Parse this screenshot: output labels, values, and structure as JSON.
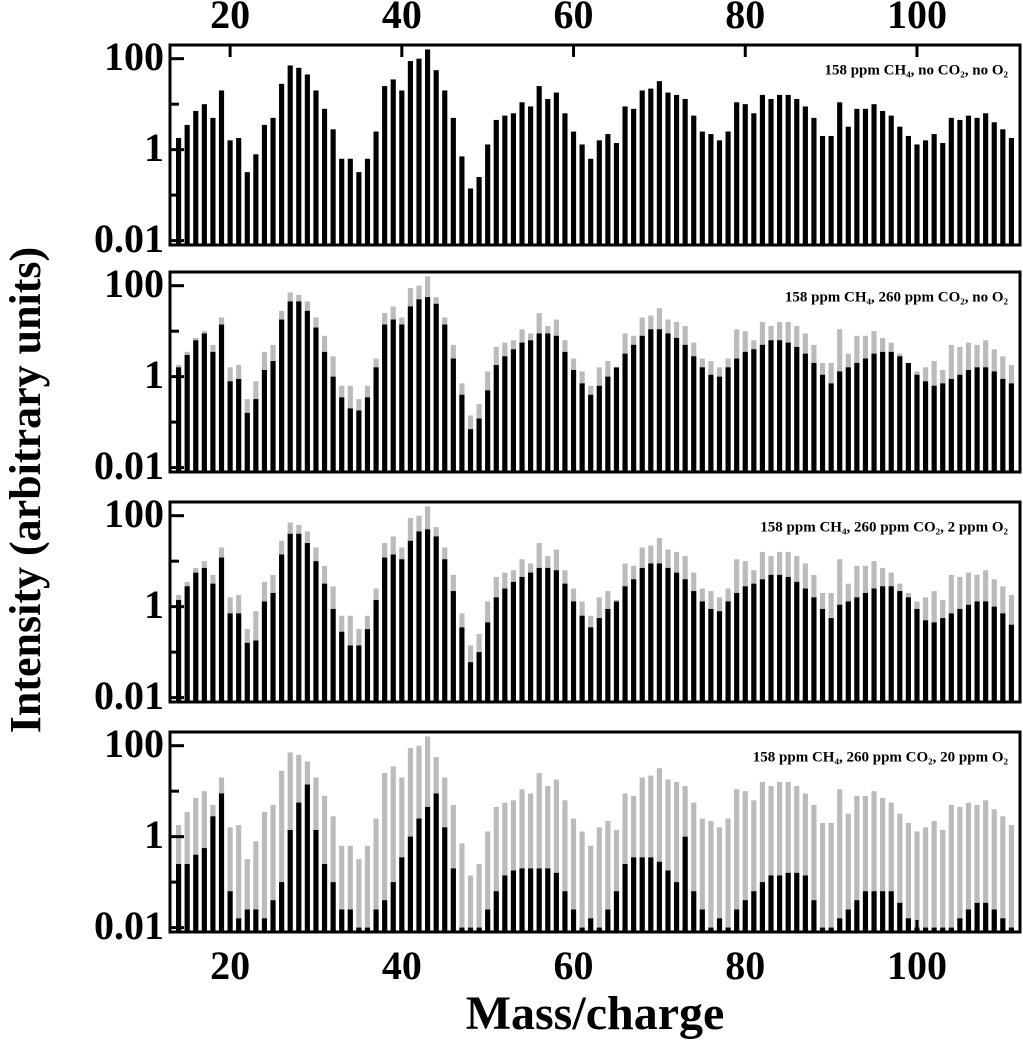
{
  "ylabel": "Intensity (arbitrary units)",
  "chart_data": [
    {
      "type": "bar",
      "annotation": "158 ppm CH₄, no CO₂, no O₂",
      "x": [
        14,
        15,
        16,
        17,
        18,
        19,
        20,
        21,
        22,
        23,
        24,
        25,
        26,
        27,
        28,
        29,
        30,
        31,
        32,
        33,
        34,
        35,
        36,
        37,
        38,
        39,
        40,
        41,
        42,
        43,
        44,
        45,
        46,
        47,
        48,
        49,
        50,
        51,
        52,
        53,
        54,
        55,
        56,
        57,
        58,
        59,
        60,
        61,
        62,
        63,
        64,
        65,
        66,
        67,
        68,
        69,
        70,
        71,
        72,
        73,
        74,
        75,
        76,
        77,
        78,
        79,
        80,
        81,
        82,
        83,
        84,
        85,
        86,
        87,
        88,
        89,
        90,
        91,
        92,
        93,
        94,
        95,
        96,
        97,
        98,
        99,
        100,
        101,
        102,
        103,
        104,
        105,
        106,
        107,
        108,
        109,
        110,
        111
      ],
      "series": [
        {
          "color": "#000000",
          "values": [
            1.8,
            3.5,
            7.1,
            10,
            5,
            20,
            1.6,
            1.8,
            0.32,
            0.79,
            3.5,
            5,
            28,
            71,
            63,
            45,
            20,
            7.9,
            2.8,
            0.63,
            0.63,
            0.32,
            0.63,
            2.5,
            25,
            35,
            20,
            89,
            100,
            160,
            56,
            20,
            5,
            0.71,
            0.14,
            0.25,
            1.3,
            4.5,
            5.6,
            6.3,
            11,
            8.9,
            25,
            13,
            18,
            6.3,
            2.5,
            1.3,
            0.63,
            1.6,
            2.2,
            1.4,
            8.9,
            7.9,
            20,
            22,
            32,
            18,
            16,
            13,
            5.6,
            2.5,
            2.2,
            1.6,
            2.5,
            11,
            10,
            6.3,
            16,
            13,
            16,
            16,
            13,
            8.9,
            5,
            2,
            2,
            11,
            3.2,
            7.9,
            7.9,
            10,
            7.1,
            5.6,
            3.2,
            2,
            1.3,
            1.6,
            2.2,
            1.4,
            5,
            4.5,
            5.6,
            5,
            6.3,
            4,
            2.8,
            1.8
          ]
        }
      ],
      "xlim": [
        13,
        112
      ],
      "xticks": [
        20,
        40,
        60,
        80,
        100
      ],
      "xtick_side": "top",
      "ylim": [
        0.008,
        200
      ],
      "yticks": [
        0.01,
        1,
        100
      ],
      "yminor": [
        0.1,
        10
      ],
      "yscale": "log"
    },
    {
      "type": "bar",
      "annotation": "158 ppm CH₄, 260 ppm CO₂, no O₂",
      "x": [
        14,
        15,
        16,
        17,
        18,
        19,
        20,
        21,
        22,
        23,
        24,
        25,
        26,
        27,
        28,
        29,
        30,
        31,
        32,
        33,
        34,
        35,
        36,
        37,
        38,
        39,
        40,
        41,
        42,
        43,
        44,
        45,
        46,
        47,
        48,
        49,
        50,
        51,
        52,
        53,
        54,
        55,
        56,
        57,
        58,
        59,
        60,
        61,
        62,
        63,
        64,
        65,
        66,
        67,
        68,
        69,
        70,
        71,
        72,
        73,
        74,
        75,
        76,
        77,
        78,
        79,
        80,
        81,
        82,
        83,
        84,
        85,
        86,
        87,
        88,
        89,
        90,
        91,
        92,
        93,
        94,
        95,
        96,
        97,
        98,
        99,
        100,
        101,
        102,
        103,
        104,
        105,
        106,
        107,
        108,
        109,
        110,
        111
      ],
      "series": [
        {
          "color": "#bbbbbb",
          "values": [
            1.8,
            3.5,
            7.1,
            10,
            5,
            20,
            1.6,
            1.8,
            0.32,
            0.79,
            3.5,
            5,
            28,
            71,
            63,
            45,
            20,
            7.9,
            2.8,
            0.63,
            0.63,
            0.32,
            0.63,
            2.5,
            25,
            35,
            20,
            89,
            100,
            160,
            56,
            20,
            5,
            0.71,
            0.14,
            0.25,
            1.3,
            4.5,
            5.6,
            6.3,
            11,
            8.9,
            25,
            13,
            18,
            6.3,
            2.5,
            1.3,
            0.63,
            1.6,
            2.2,
            1.4,
            8.9,
            7.9,
            20,
            22,
            32,
            18,
            16,
            13,
            5.6,
            2.5,
            2.2,
            1.6,
            2.5,
            11,
            10,
            6.3,
            16,
            13,
            16,
            16,
            13,
            8.9,
            5,
            2,
            2,
            11,
            3.2,
            7.9,
            7.9,
            10,
            7.1,
            5.6,
            3.2,
            2,
            1.3,
            1.6,
            2.2,
            1.4,
            5,
            4.5,
            5.6,
            5,
            6.3,
            4,
            2.8,
            1.8
          ]
        },
        {
          "color": "#000000",
          "values": [
            1.6,
            3,
            6.3,
            8.9,
            3.5,
            14,
            0.79,
            0.89,
            0.16,
            0.32,
            1.4,
            2.2,
            18,
            45,
            45,
            28,
            12,
            3.5,
            1,
            0.35,
            0.2,
            0.18,
            0.35,
            1.6,
            14,
            18,
            14,
            35,
            50,
            56,
            40,
            14,
            2.5,
            0.4,
            0.07,
            0.12,
            0.5,
            1.8,
            2.8,
            4,
            5.6,
            6.3,
            8.9,
            8.9,
            7.9,
            3.5,
            1.4,
            0.71,
            0.4,
            0.63,
            1,
            1.6,
            3.2,
            5,
            7.9,
            11,
            11,
            8.9,
            7.1,
            5,
            2.8,
            1.6,
            1.1,
            1,
            1.6,
            2.5,
            3.5,
            4,
            5,
            6.3,
            6.3,
            5.6,
            4.5,
            3.2,
            2,
            1.1,
            0.71,
            1.3,
            1.6,
            2,
            2.5,
            3.2,
            3.5,
            3.5,
            2.8,
            2,
            1.1,
            0.79,
            0.63,
            0.71,
            0.89,
            1.1,
            1.4,
            1.6,
            1.6,
            1.3,
            0.89,
            0.71
          ]
        }
      ],
      "xlim": [
        13,
        112
      ],
      "ylim": [
        0.008,
        200
      ],
      "yticks": [
        0.01,
        1,
        100
      ],
      "yminor": [
        0.1,
        10
      ],
      "yscale": "log"
    },
    {
      "type": "bar",
      "annotation": "158 ppm CH₄, 260 ppm CO₂, 2 ppm O₂",
      "x": [
        14,
        15,
        16,
        17,
        18,
        19,
        20,
        21,
        22,
        23,
        24,
        25,
        26,
        27,
        28,
        29,
        30,
        31,
        32,
        33,
        34,
        35,
        36,
        37,
        38,
        39,
        40,
        41,
        42,
        43,
        44,
        45,
        46,
        47,
        48,
        49,
        50,
        51,
        52,
        53,
        54,
        55,
        56,
        57,
        58,
        59,
        60,
        61,
        62,
        63,
        64,
        65,
        66,
        67,
        68,
        69,
        70,
        71,
        72,
        73,
        74,
        75,
        76,
        77,
        78,
        79,
        80,
        81,
        82,
        83,
        84,
        85,
        86,
        87,
        88,
        89,
        90,
        91,
        92,
        93,
        94,
        95,
        96,
        97,
        98,
        99,
        100,
        101,
        102,
        103,
        104,
        105,
        106,
        107,
        108,
        109,
        110,
        111
      ],
      "series": [
        {
          "color": "#bbbbbb",
          "values": [
            1.8,
            3.5,
            7.1,
            10,
            5,
            20,
            1.6,
            1.8,
            0.32,
            0.79,
            3.5,
            5,
            28,
            71,
            63,
            45,
            20,
            7.9,
            2.8,
            0.63,
            0.63,
            0.32,
            0.63,
            2.5,
            25,
            35,
            20,
            89,
            100,
            160,
            56,
            20,
            5,
            0.71,
            0.14,
            0.25,
            1.3,
            4.5,
            5.6,
            6.3,
            11,
            8.9,
            25,
            13,
            18,
            6.3,
            2.5,
            1.3,
            0.63,
            1.6,
            2.2,
            1.4,
            8.9,
            7.9,
            20,
            22,
            32,
            18,
            16,
            13,
            5.6,
            2.5,
            2.2,
            1.6,
            2.5,
            11,
            10,
            6.3,
            16,
            13,
            16,
            16,
            13,
            8.9,
            5,
            2,
            2,
            11,
            3.2,
            7.9,
            7.9,
            10,
            7.1,
            5.6,
            3.2,
            2,
            1.3,
            1.6,
            2.2,
            1.4,
            5,
            4.5,
            5.6,
            5,
            6.3,
            4,
            2.8,
            1.8
          ]
        },
        {
          "color": "#000000",
          "values": [
            1.4,
            2.8,
            5.6,
            7.1,
            3.2,
            12,
            0.71,
            0.71,
            0.16,
            0.18,
            1.3,
            2,
            14,
            40,
            40,
            25,
            10,
            3.2,
            0.89,
            0.28,
            0.14,
            0.14,
            0.32,
            1.4,
            12,
            14,
            11,
            28,
            45,
            50,
            35,
            11,
            2.2,
            0.35,
            0.06,
            0.1,
            0.45,
            1.6,
            2.5,
            3.5,
            4.5,
            5.6,
            7.1,
            7.1,
            6.3,
            3.2,
            1.3,
            0.63,
            0.35,
            0.56,
            0.89,
            1.3,
            2.8,
            4,
            7.1,
            8.9,
            8.9,
            7.1,
            5.6,
            4,
            2.2,
            1.3,
            0.89,
            0.79,
            1.3,
            2,
            2.8,
            3.2,
            4,
            5,
            5,
            4.5,
            3.5,
            2.5,
            1.6,
            0.89,
            0.56,
            1.1,
            1.3,
            1.6,
            2,
            2.5,
            2.8,
            2.8,
            2.2,
            1.6,
            0.89,
            0.5,
            0.45,
            0.56,
            0.71,
            0.89,
            1.1,
            1.3,
            1.3,
            1,
            0.71,
            0.4
          ]
        }
      ],
      "xlim": [
        13,
        112
      ],
      "ylim": [
        0.008,
        200
      ],
      "yticks": [
        0.01,
        1,
        100
      ],
      "yminor": [
        0.1,
        10
      ],
      "yscale": "log"
    },
    {
      "type": "bar",
      "annotation": "158 ppm CH₄, 260 ppm CO₂, 20 ppm O₂",
      "xlabel": "Mass/charge",
      "x": [
        14,
        15,
        16,
        17,
        18,
        19,
        20,
        21,
        22,
        23,
        24,
        25,
        26,
        27,
        28,
        29,
        30,
        31,
        32,
        33,
        34,
        35,
        36,
        37,
        38,
        39,
        40,
        41,
        42,
        43,
        44,
        45,
        46,
        47,
        48,
        49,
        50,
        51,
        52,
        53,
        54,
        55,
        56,
        57,
        58,
        59,
        60,
        61,
        62,
        63,
        64,
        65,
        66,
        67,
        68,
        69,
        70,
        71,
        72,
        73,
        74,
        75,
        76,
        77,
        78,
        79,
        80,
        81,
        82,
        83,
        84,
        85,
        86,
        87,
        88,
        89,
        90,
        91,
        92,
        93,
        94,
        95,
        96,
        97,
        98,
        99,
        100,
        101,
        102,
        103,
        104,
        105,
        106,
        107,
        108,
        109,
        110,
        111
      ],
      "series": [
        {
          "color": "#bbbbbb",
          "values": [
            1.8,
            3.5,
            7.1,
            10,
            5,
            20,
            1.6,
            1.8,
            0.32,
            0.79,
            3.5,
            5,
            28,
            71,
            63,
            45,
            20,
            7.9,
            2.8,
            0.63,
            0.63,
            0.32,
            0.63,
            2.5,
            25,
            35,
            20,
            89,
            100,
            160,
            56,
            20,
            5,
            0.71,
            0.14,
            0.25,
            1.3,
            4.5,
            5.6,
            6.3,
            11,
            8.9,
            25,
            13,
            18,
            6.3,
            2.5,
            1.3,
            0.63,
            1.6,
            2.2,
            1.4,
            8.9,
            7.9,
            20,
            22,
            32,
            18,
            16,
            13,
            5.6,
            2.5,
            2.2,
            1.6,
            2.5,
            11,
            10,
            6.3,
            16,
            13,
            16,
            16,
            13,
            8.9,
            5,
            2,
            2,
            11,
            3.2,
            7.9,
            7.9,
            10,
            7.1,
            5.6,
            3.2,
            2,
            1.3,
            1.6,
            2.2,
            1.4,
            5,
            4.5,
            5.6,
            5,
            6.3,
            4,
            2.8,
            1.8
          ]
        },
        {
          "color": "#000000",
          "values": [
            0.25,
            0.25,
            0.4,
            0.56,
            2.8,
            8.9,
            0.063,
            0.016,
            0.025,
            0.025,
            0.016,
            0.04,
            0.1,
            1.4,
            5.6,
            14,
            1.4,
            0.25,
            0.1,
            0.025,
            0.025,
            0.01,
            0.01,
            0.025,
            0.04,
            0.1,
            0.35,
            1,
            2.5,
            4.5,
            8.9,
            1.6,
            0.2,
            0.01,
            0.01,
            0.01,
            0.025,
            0.063,
            0.14,
            0.18,
            0.2,
            0.2,
            0.2,
            0.2,
            0.16,
            0.063,
            0.025,
            0.01,
            0.016,
            0.01,
            0.025,
            0.063,
            0.25,
            0.35,
            0.35,
            0.35,
            0.28,
            0.18,
            0.1,
            1,
            0.063,
            0.025,
            0.01,
            0.016,
            0.01,
            0.025,
            0.04,
            0.063,
            0.1,
            0.14,
            0.14,
            0.16,
            0.16,
            0.14,
            0.04,
            0.01,
            0.01,
            0.016,
            0.025,
            0.04,
            0.063,
            0.063,
            0.063,
            0.063,
            0.035,
            0.016,
            0.01,
            0.01,
            0.01,
            0.01,
            0.01,
            0.016,
            0.025,
            0.035,
            0.035,
            0.025,
            0.016,
            0.01
          ]
        }
      ],
      "xlim": [
        13,
        112
      ],
      "xticks": [
        20,
        40,
        60,
        80,
        100
      ],
      "xtick_side": "bottom",
      "ylim": [
        0.008,
        200
      ],
      "yticks": [
        0.01,
        1,
        100
      ],
      "yminor": [
        0.1,
        10
      ],
      "yscale": "log"
    }
  ]
}
